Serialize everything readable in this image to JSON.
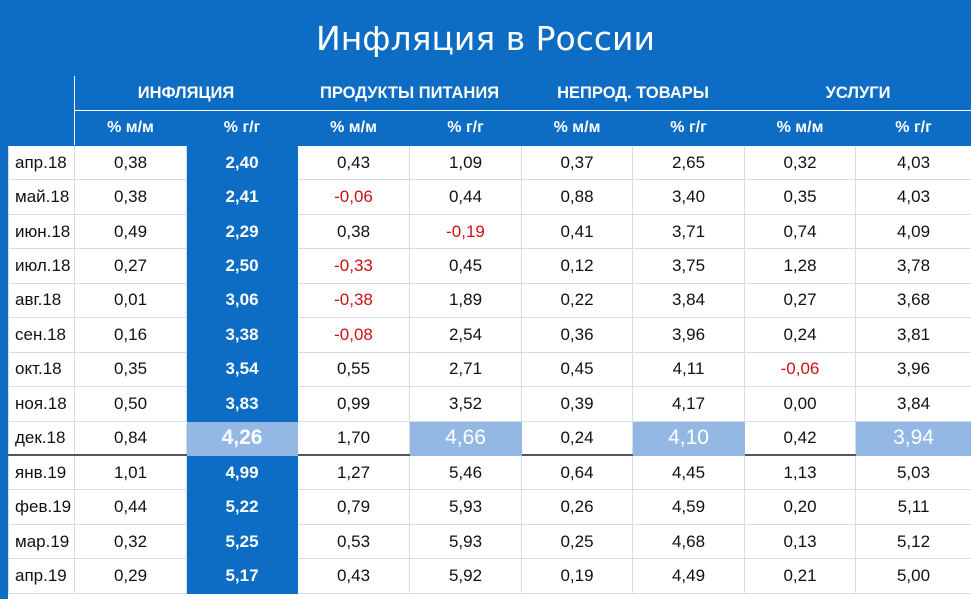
{
  "title": "Инфляция в России",
  "groups": [
    "ИНФЛЯЦИЯ",
    "ПРОДУКТЫ ПИТАНИЯ",
    "НЕПРОД. ТОВАРЫ",
    "УСЛУГИ"
  ],
  "subheaders": [
    "% м/м",
    "% г/г",
    "% м/м",
    "% г/г",
    "% м/м",
    "% г/г",
    "% м/м",
    "% г/г"
  ],
  "rows": [
    {
      "month": "апр.18",
      "v": [
        "0,38",
        "2,40",
        "0,43",
        "1,09",
        "0,37",
        "2,65",
        "0,32",
        "4,03"
      ]
    },
    {
      "month": "май.18",
      "v": [
        "0,38",
        "2,41",
        "-0,06",
        "0,44",
        "0,88",
        "3,40",
        "0,35",
        "4,03"
      ]
    },
    {
      "month": "июн.18",
      "v": [
        "0,49",
        "2,29",
        "0,38",
        "-0,19",
        "0,41",
        "3,71",
        "0,74",
        "4,09"
      ]
    },
    {
      "month": "июл.18",
      "v": [
        "0,27",
        "2,50",
        "-0,33",
        "0,45",
        "0,12",
        "3,75",
        "1,28",
        "3,78"
      ]
    },
    {
      "month": "авг.18",
      "v": [
        "0,01",
        "3,06",
        "-0,38",
        "1,89",
        "0,22",
        "3,84",
        "0,27",
        "3,68"
      ]
    },
    {
      "month": "сен.18",
      "v": [
        "0,16",
        "3,38",
        "-0,08",
        "2,54",
        "0,36",
        "3,96",
        "0,24",
        "3,81"
      ]
    },
    {
      "month": "окт.18",
      "v": [
        "0,35",
        "3,54",
        "0,55",
        "2,71",
        "0,45",
        "4,11",
        "-0,06",
        "3,96"
      ]
    },
    {
      "month": "ноя.18",
      "v": [
        "0,50",
        "3,83",
        "0,99",
        "3,52",
        "0,39",
        "4,17",
        "0,00",
        "3,84"
      ]
    },
    {
      "month": "дек.18",
      "v": [
        "0,84",
        "4,26",
        "1,70",
        "4,66",
        "0,24",
        "4,10",
        "0,42",
        "3,94"
      ]
    },
    {
      "month": "янв.19",
      "v": [
        "1,01",
        "4,99",
        "1,27",
        "5,46",
        "0,64",
        "4,45",
        "1,13",
        "5,03"
      ]
    },
    {
      "month": "фев.19",
      "v": [
        "0,44",
        "5,22",
        "0,79",
        "5,93",
        "0,26",
        "4,59",
        "0,20",
        "5,11"
      ]
    },
    {
      "month": "мар.19",
      "v": [
        "0,32",
        "5,25",
        "0,53",
        "5,93",
        "0,25",
        "4,68",
        "0,13",
        "5,12"
      ]
    },
    {
      "month": "апр.19",
      "v": [
        "0,29",
        "5,17",
        "0,43",
        "5,92",
        "0,19",
        "4,49",
        "0,21",
        "5,00"
      ]
    }
  ],
  "colors": {
    "header_blue": "#0d6cc3",
    "highlight_light_blue": "#94b8e4",
    "negative_red": "#cc1111"
  }
}
